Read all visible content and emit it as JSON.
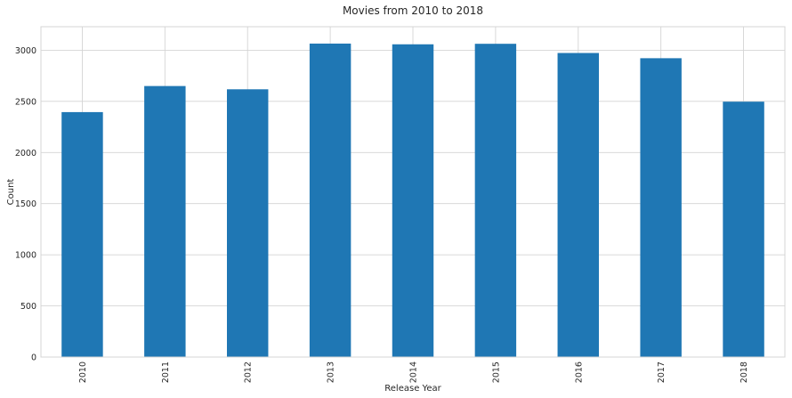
{
  "chart_data": {
    "type": "bar",
    "title": "Movies from 2010 to 2018",
    "xlabel": "Release Year",
    "ylabel": "Count",
    "categories": [
      "2010",
      "2011",
      "2012",
      "2013",
      "2014",
      "2015",
      "2016",
      "2017",
      "2018"
    ],
    "values": [
      2395,
      2650,
      2618,
      3065,
      3058,
      3063,
      2973,
      2922,
      2497
    ],
    "ylim": [
      0,
      3230
    ],
    "yticks": [
      0,
      500,
      1000,
      1500,
      2000,
      2500,
      3000
    ],
    "grid": true,
    "legend": "none",
    "colors": {
      "bar": "#1f77b4",
      "grid": "#d4d4d4",
      "text": "#262626"
    }
  }
}
